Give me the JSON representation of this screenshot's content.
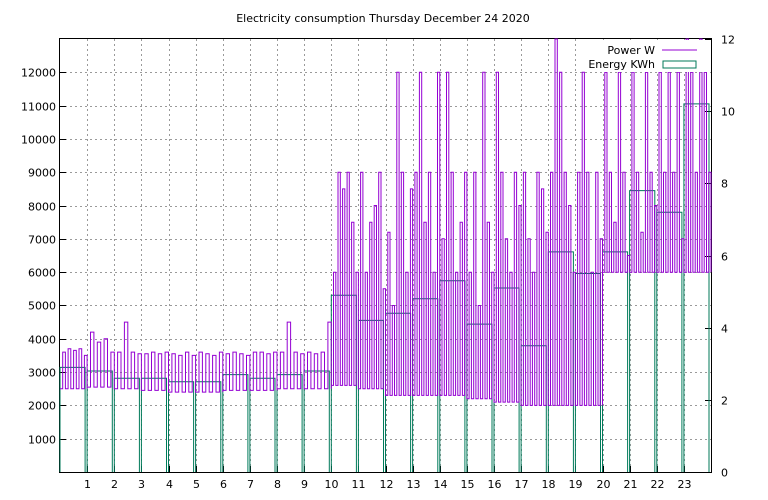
{
  "chart_data": {
    "type": "line",
    "title": "Electricity consumption Thursday December 24 2020",
    "xlabel": "",
    "ylabel": "",
    "y2label": "",
    "xlim": [
      0,
      24
    ],
    "ylim": [
      0,
      13000
    ],
    "y2lim": [
      0,
      12
    ],
    "x_ticks": [
      1,
      2,
      3,
      4,
      5,
      6,
      7,
      8,
      9,
      10,
      11,
      12,
      13,
      14,
      15,
      16,
      17,
      18,
      19,
      20,
      21,
      22,
      23
    ],
    "y_ticks": [
      1000,
      2000,
      3000,
      4000,
      5000,
      6000,
      7000,
      8000,
      9000,
      10000,
      11000,
      12000
    ],
    "y2_ticks": [
      0,
      2,
      4,
      6,
      8,
      10,
      12
    ],
    "grid": true,
    "legend_position": "top-right",
    "series": [
      {
        "name": "Power W",
        "axis": "left",
        "color": "#9400d3",
        "style": "steps",
        "hourly_segments": [
          {
            "base": 2500,
            "peaks": [
              3600,
              3700,
              3650,
              3700,
              3500
            ]
          },
          {
            "base": 2550,
            "peaks": [
              4200,
              3900,
              4000,
              3600
            ]
          },
          {
            "base": 2500,
            "peaks": [
              3600,
              4500,
              3600,
              3550
            ]
          },
          {
            "base": 2450,
            "peaks": [
              3550,
              3600,
              3550,
              3600
            ]
          },
          {
            "base": 2400,
            "peaks": [
              3550,
              3500,
              3600,
              3500
            ]
          },
          {
            "base": 2400,
            "peaks": [
              3600,
              3550,
              3500,
              3600
            ]
          },
          {
            "base": 2450,
            "peaks": [
              3550,
              3600,
              3550,
              3500
            ]
          },
          {
            "base": 2450,
            "peaks": [
              3600,
              3600,
              3550,
              3600
            ]
          },
          {
            "base": 2500,
            "peaks": [
              3600,
              4500,
              3600,
              3550
            ]
          },
          {
            "base": 2500,
            "peaks": [
              3600,
              3550,
              3600,
              4500
            ]
          },
          {
            "base": 2600,
            "peaks": [
              6000,
              9000,
              8500,
              9000,
              7500,
              6000
            ]
          },
          {
            "base": 2500,
            "peaks": [
              9000,
              6000,
              7500,
              8000,
              9000,
              5500
            ]
          },
          {
            "base": 2300,
            "peaks": [
              7200,
              5000,
              12000,
              9000,
              6000,
              8500
            ]
          },
          {
            "base": 2300,
            "peaks": [
              9000,
              12000,
              7500,
              9000,
              6000,
              12000
            ]
          },
          {
            "base": 2300,
            "peaks": [
              7000,
              12000,
              9000,
              6000,
              7500,
              9000
            ]
          },
          {
            "base": 2200,
            "peaks": [
              6000,
              9000,
              5000,
              12000,
              7500,
              6000
            ]
          },
          {
            "base": 2100,
            "peaks": [
              12000,
              9000,
              7000,
              6000,
              9000,
              8000
            ]
          },
          {
            "base": 2000,
            "peaks": [
              9000,
              7000,
              6000,
              9000,
              8500,
              7200
            ]
          },
          {
            "base": 2000,
            "peaks": [
              9000,
              13000,
              12000,
              9000,
              8000,
              6000
            ]
          },
          {
            "base": 2000,
            "peaks": [
              9000,
              12000,
              9000,
              6000,
              9000,
              7000
            ]
          },
          {
            "base": 6000,
            "peaks": [
              12000,
              9000,
              7500,
              12000,
              9000,
              6500
            ]
          },
          {
            "base": 6000,
            "peaks": [
              12000,
              9000,
              7200,
              12000,
              9000,
              8000
            ]
          },
          {
            "base": 6000,
            "peaks": [
              12000,
              9000,
              12000,
              9000,
              12000,
              7000
            ]
          },
          {
            "base": 6000,
            "peaks": [
              13000,
              12000,
              9000,
              13000,
              12000,
              9000
            ]
          }
        ]
      },
      {
        "name": "Energy KWh",
        "axis": "right",
        "color": "#007a5a",
        "style": "steps",
        "hourly": [
          2.9,
          2.8,
          2.6,
          2.6,
          2.5,
          2.5,
          2.7,
          2.6,
          2.7,
          2.8,
          4.9,
          4.2,
          4.4,
          4.8,
          5.3,
          4.1,
          5.1,
          3.5,
          6.1,
          5.5,
          6.1,
          7.8,
          7.2,
          10.2
        ]
      }
    ]
  }
}
